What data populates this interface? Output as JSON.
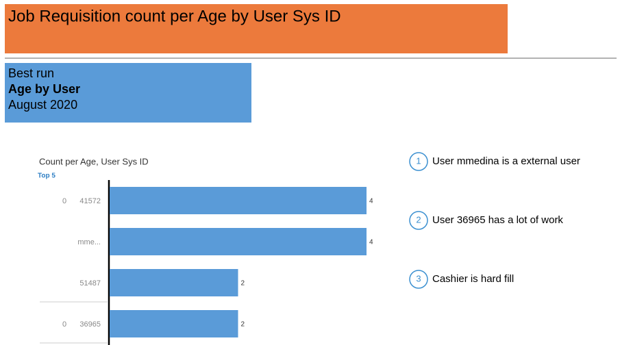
{
  "header": {
    "title": "Job Requisition count per Age by User Sys ID"
  },
  "info": {
    "lines": [
      "Best run",
      "Age by User",
      "August 2020"
    ]
  },
  "chart_data": {
    "type": "bar",
    "orientation": "horizontal",
    "title": "Count per Age, User Sys ID",
    "subtitle": "Top 5",
    "groups": [
      "0",
      null,
      null,
      "0"
    ],
    "categories": [
      "41572",
      "mme...",
      "51487",
      "36965"
    ],
    "values": [
      4,
      4,
      2,
      2
    ],
    "color": "#5a9bd8"
  },
  "notes": [
    {
      "number": "1",
      "text": "User mmedina is a external user"
    },
    {
      "number": "2",
      "text": "User 36965 has a lot of work"
    },
    {
      "number": "3",
      "text": "Cashier is hard fill"
    }
  ]
}
